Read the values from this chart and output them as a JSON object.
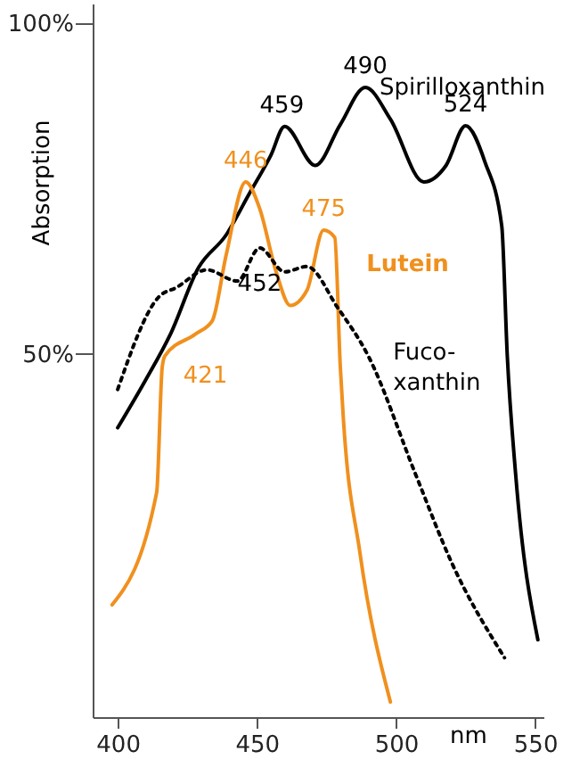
{
  "chart_data": {
    "type": "line",
    "ylabel": "Absorption",
    "xlabel": "nm",
    "xlim": [
      391,
      553
    ],
    "ylim": [
      -5,
      103
    ],
    "xticks": [
      400,
      450,
      500,
      550
    ],
    "yticks": [
      {
        "value": 50,
        "label": "50%"
      },
      {
        "value": 100,
        "label": "100%"
      }
    ],
    "grid": false,
    "marker": "none",
    "series": [
      {
        "name": "Spirilloxanthin",
        "color": "#000000",
        "line_style": "solid",
        "x": [
          400,
          410,
          419,
          429,
          439,
          447,
          455,
          460,
          471,
          480,
          489,
          498,
          510,
          518,
          525,
          532,
          538,
          540,
          543,
          551
        ],
        "values": [
          38.8,
          46,
          53,
          63,
          68,
          74,
          80,
          84.4,
          78.5,
          84.7,
          90.3,
          85.5,
          76,
          78.5,
          84.5,
          79,
          69.4,
          49.7,
          31.8,
          6.7
        ]
      },
      {
        "name": "Lutein",
        "color": "#f0901e",
        "line_style": "solid",
        "x": [
          398,
          414,
          416,
          417,
          428,
          434,
          439,
          446,
          451,
          457,
          462,
          468,
          474,
          478,
          480,
          481,
          487,
          498
        ],
        "values": [
          12,
          29,
          48,
          49.7,
          53,
          55,
          65,
          76,
          72,
          62.3,
          57.3,
          59.6,
          68.7,
          67.6,
          48,
          40.8,
          20,
          -2.7
        ]
      },
      {
        "name": "Fuco-xanthin",
        "color": "#000000",
        "line_style": "dotted",
        "x": [
          400,
          415,
          421,
          432,
          443,
          451,
          460,
          468,
          479,
          490,
          507,
          520,
          539
        ],
        "values": [
          44.6,
          58.7,
          60,
          62.7,
          61,
          66,
          62.4,
          63.2,
          57,
          49.7,
          31.8,
          18.4,
          4
        ]
      }
    ],
    "annotations": [
      {
        "text": "459",
        "x": 459,
        "y": 84.4
      },
      {
        "text": "490",
        "x": 489,
        "y": 90.3
      },
      {
        "text": "524",
        "x": 525,
        "y": 84.5
      },
      {
        "text": "446",
        "x": 446,
        "y": 76
      },
      {
        "text": "475",
        "x": 474,
        "y": 68.7
      },
      {
        "text": "452",
        "x": 451,
        "y": 66
      },
      {
        "text": "421",
        "x": 421,
        "y": 51
      }
    ]
  }
}
